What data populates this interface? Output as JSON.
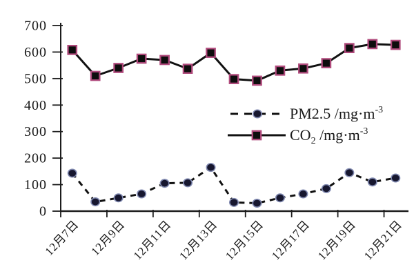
{
  "figure": {
    "background": "#ffffff",
    "axis_color": "#1c1c1c",
    "text_color": "#1b1b1b"
  },
  "chart_data": {
    "type": "line",
    "title": "",
    "xlabel": "",
    "ylabel": "",
    "grid": false,
    "n_points": 15,
    "ylim": [
      0,
      700
    ],
    "ytick_step": 100,
    "ytick_labels": [
      "0",
      "100",
      "200",
      "300",
      "400",
      "500",
      "600",
      "700"
    ],
    "x_tick_labels": [
      "12月7日",
      "12月9日",
      "12月11日",
      "12月13日",
      "12月15日",
      "12月17日",
      "12月19日",
      "12月21日"
    ],
    "x_label_point_indices": [
      0,
      2,
      4,
      6,
      8,
      10,
      12,
      14
    ],
    "x_label_rotation_deg": -47,
    "legend_position": "middle-right",
    "series": [
      {
        "name": "PM2.5 /mg·m⁻³",
        "line_style": "dashed",
        "line_color": "#111111",
        "marker": "circle",
        "marker_fill": "#17172f",
        "marker_stroke": "#8089b0",
        "values": [
          143,
          35,
          50,
          65,
          105,
          107,
          165,
          33,
          30,
          50,
          65,
          85,
          145,
          110,
          125
        ]
      },
      {
        "name": "CO₂ /mg·m⁻³",
        "line_style": "solid",
        "line_color": "#111111",
        "marker": "square",
        "marker_fill": "#0d0d0d",
        "marker_stroke": "#b04a7c",
        "values": [
          608,
          510,
          540,
          575,
          570,
          537,
          597,
          498,
          492,
          530,
          538,
          558,
          615,
          630,
          627
        ]
      }
    ],
    "legend_items": [
      {
        "id": "pm25",
        "parts": [
          {
            "t": "PM2.5 /mg·m"
          },
          {
            "t": "-3",
            "v": "sup"
          }
        ]
      },
      {
        "id": "co2",
        "parts": [
          {
            "t": "CO"
          },
          {
            "t": "2",
            "v": "sub"
          },
          {
            "t": " /mg·m"
          },
          {
            "t": "-3",
            "v": "sup"
          }
        ]
      }
    ]
  }
}
